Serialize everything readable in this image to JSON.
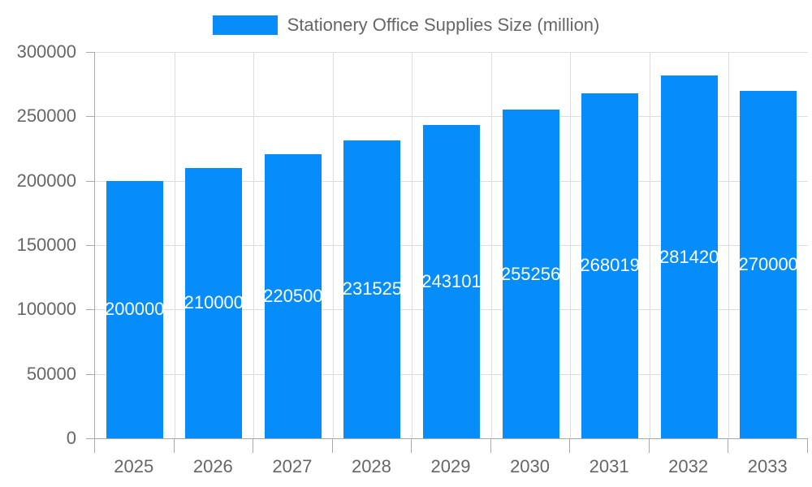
{
  "chart_data": {
    "type": "bar",
    "title": "",
    "xlabel": "",
    "ylabel": "",
    "legend": [
      "Stationery Office Supplies Size (million)"
    ],
    "legend_position": "top",
    "grid": true,
    "categories": [
      "2025",
      "2026",
      "2027",
      "2028",
      "2029",
      "2030",
      "2031",
      "2032",
      "2033"
    ],
    "series": [
      {
        "name": "Stationery Office Supplies Size (million)",
        "color": "#068DF9",
        "values": [
          200000,
          210000,
          220500,
          231525,
          243101,
          255256,
          268019,
          281420,
          270000
        ]
      }
    ],
    "ylim": [
      0,
      300000
    ],
    "yticks": [
      "0",
      "50000",
      "100000",
      "150000",
      "200000",
      "250000",
      "300000"
    ]
  },
  "legend": {
    "label": "Stationery Office Supplies Size (million)",
    "color": "#068DF9"
  },
  "labels": [
    "200000",
    "210000",
    "220500",
    "231525",
    "243101",
    "255256",
    "268019",
    "281420",
    "270000"
  ]
}
